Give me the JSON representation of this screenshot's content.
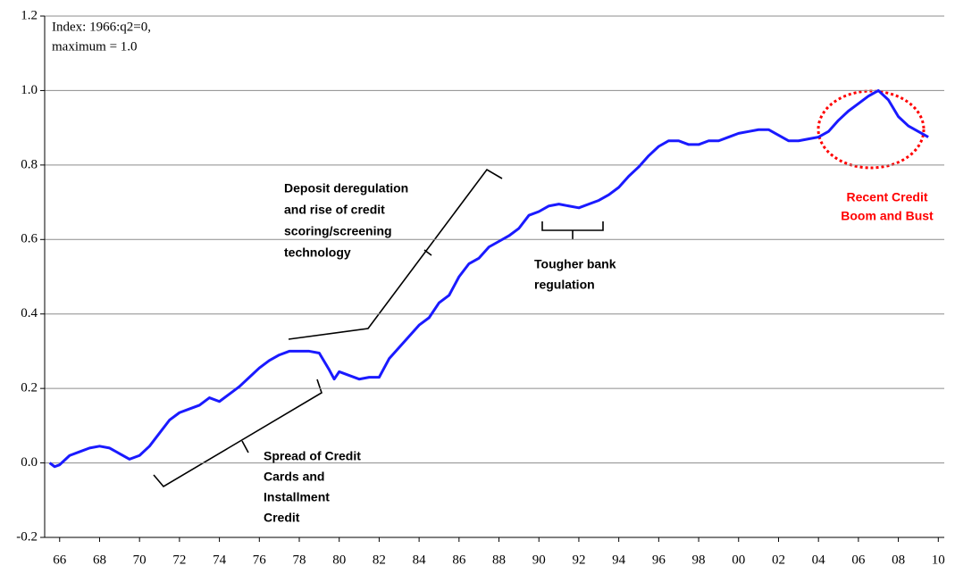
{
  "chart_data": {
    "type": "line",
    "note": [
      "Index: 1966:q2=0,",
      "maximum  = 1.0"
    ],
    "x": [
      1965.5,
      1965.75,
      1966,
      1966.5,
      1967,
      1967.5,
      1968,
      1968.5,
      1969,
      1969.5,
      1970,
      1970.5,
      1971,
      1971.5,
      1972,
      1972.5,
      1973,
      1973.5,
      1974,
      1974.5,
      1975,
      1975.5,
      1976,
      1976.5,
      1977,
      1977.5,
      1978,
      1978.5,
      1979,
      1979.5,
      1979.75,
      1980,
      1980.5,
      1981,
      1981.5,
      1982,
      1982.5,
      1983,
      1983.5,
      1984,
      1984.5,
      1985,
      1985.5,
      1986,
      1986.5,
      1987,
      1987.5,
      1988,
      1988.5,
      1989,
      1989.5,
      1990,
      1990.5,
      1991,
      1991.5,
      1992,
      1992.5,
      1993,
      1993.5,
      1994,
      1994.5,
      1995,
      1995.5,
      1996,
      1996.5,
      1997,
      1997.5,
      1998,
      1998.5,
      1999,
      1999.5,
      2000,
      2000.5,
      2001,
      2001.5,
      2002,
      2002.5,
      2003,
      2003.5,
      2004,
      2004.5,
      2005,
      2005.5,
      2006,
      2006.5,
      2007,
      2007.5,
      2008,
      2008.5,
      2009,
      2009.5
    ],
    "series": [
      {
        "color": "#1a1aff",
        "values": [
          0.0,
          -0.01,
          -0.005,
          0.02,
          0.03,
          0.04,
          0.045,
          0.04,
          0.025,
          0.01,
          0.02,
          0.045,
          0.08,
          0.115,
          0.135,
          0.145,
          0.155,
          0.175,
          0.165,
          0.185,
          0.205,
          0.23,
          0.255,
          0.275,
          0.29,
          0.3,
          0.3,
          0.3,
          0.295,
          0.25,
          0.225,
          0.245,
          0.235,
          0.225,
          0.23,
          0.23,
          0.28,
          0.31,
          0.34,
          0.37,
          0.39,
          0.43,
          0.45,
          0.5,
          0.535,
          0.55,
          0.58,
          0.595,
          0.61,
          0.63,
          0.665,
          0.675,
          0.69,
          0.695,
          0.69,
          0.685,
          0.695,
          0.705,
          0.72,
          0.74,
          0.77,
          0.795,
          0.825,
          0.85,
          0.865,
          0.865,
          0.855,
          0.855,
          0.865,
          0.865,
          0.875,
          0.885,
          0.89,
          0.895,
          0.895,
          0.88,
          0.865,
          0.865,
          0.87,
          0.875,
          0.89,
          0.92,
          0.945,
          0.965,
          0.985,
          1.0,
          0.975,
          0.93,
          0.905,
          0.89,
          0.875
        ]
      }
    ],
    "xlim": [
      1965.25,
      2010.3
    ],
    "xticks": [
      {
        "value": 1966,
        "label": "66"
      },
      {
        "value": 1968,
        "label": "68"
      },
      {
        "value": 1970,
        "label": "70"
      },
      {
        "value": 1972,
        "label": "72"
      },
      {
        "value": 1974,
        "label": "74"
      },
      {
        "value": 1976,
        "label": "76"
      },
      {
        "value": 1978,
        "label": "78"
      },
      {
        "value": 1980,
        "label": "80"
      },
      {
        "value": 1982,
        "label": "82"
      },
      {
        "value": 1984,
        "label": "84"
      },
      {
        "value": 1986,
        "label": "86"
      },
      {
        "value": 1988,
        "label": "88"
      },
      {
        "value": 1990,
        "label": "90"
      },
      {
        "value": 1992,
        "label": "92"
      },
      {
        "value": 1994,
        "label": "94"
      },
      {
        "value": 1996,
        "label": "96"
      },
      {
        "value": 1998,
        "label": "98"
      },
      {
        "value": 2000,
        "label": "00"
      },
      {
        "value": 2002,
        "label": "02"
      },
      {
        "value": 2004,
        "label": "04"
      },
      {
        "value": 2006,
        "label": "06"
      },
      {
        "value": 2008,
        "label": "08"
      },
      {
        "value": 2010,
        "label": "10"
      }
    ],
    "ylim": [
      -0.2,
      1.2
    ],
    "yticks": [
      -0.2,
      {
        "value": 0,
        "label": "0.0"
      },
      0.2,
      0.4,
      0.6,
      0.8,
      {
        "value": 1,
        "label": "1.0"
      },
      1.2
    ],
    "grid": true,
    "annotations": [
      {
        "lines": [
          "Deposit deregulation",
          "and rise of credit",
          "scoring/screening",
          "technology"
        ],
        "color": "#000000"
      },
      {
        "lines": [
          "Tougher bank",
          "regulation"
        ],
        "color": "#000000"
      },
      {
        "lines": [
          "Spread of Credit",
          "Cards and",
          "Installment",
          "Credit"
        ],
        "color": "#000000"
      },
      {
        "lines": [
          "Recent Credit",
          "Boom and Bust"
        ],
        "color": "#ff0000"
      }
    ]
  }
}
